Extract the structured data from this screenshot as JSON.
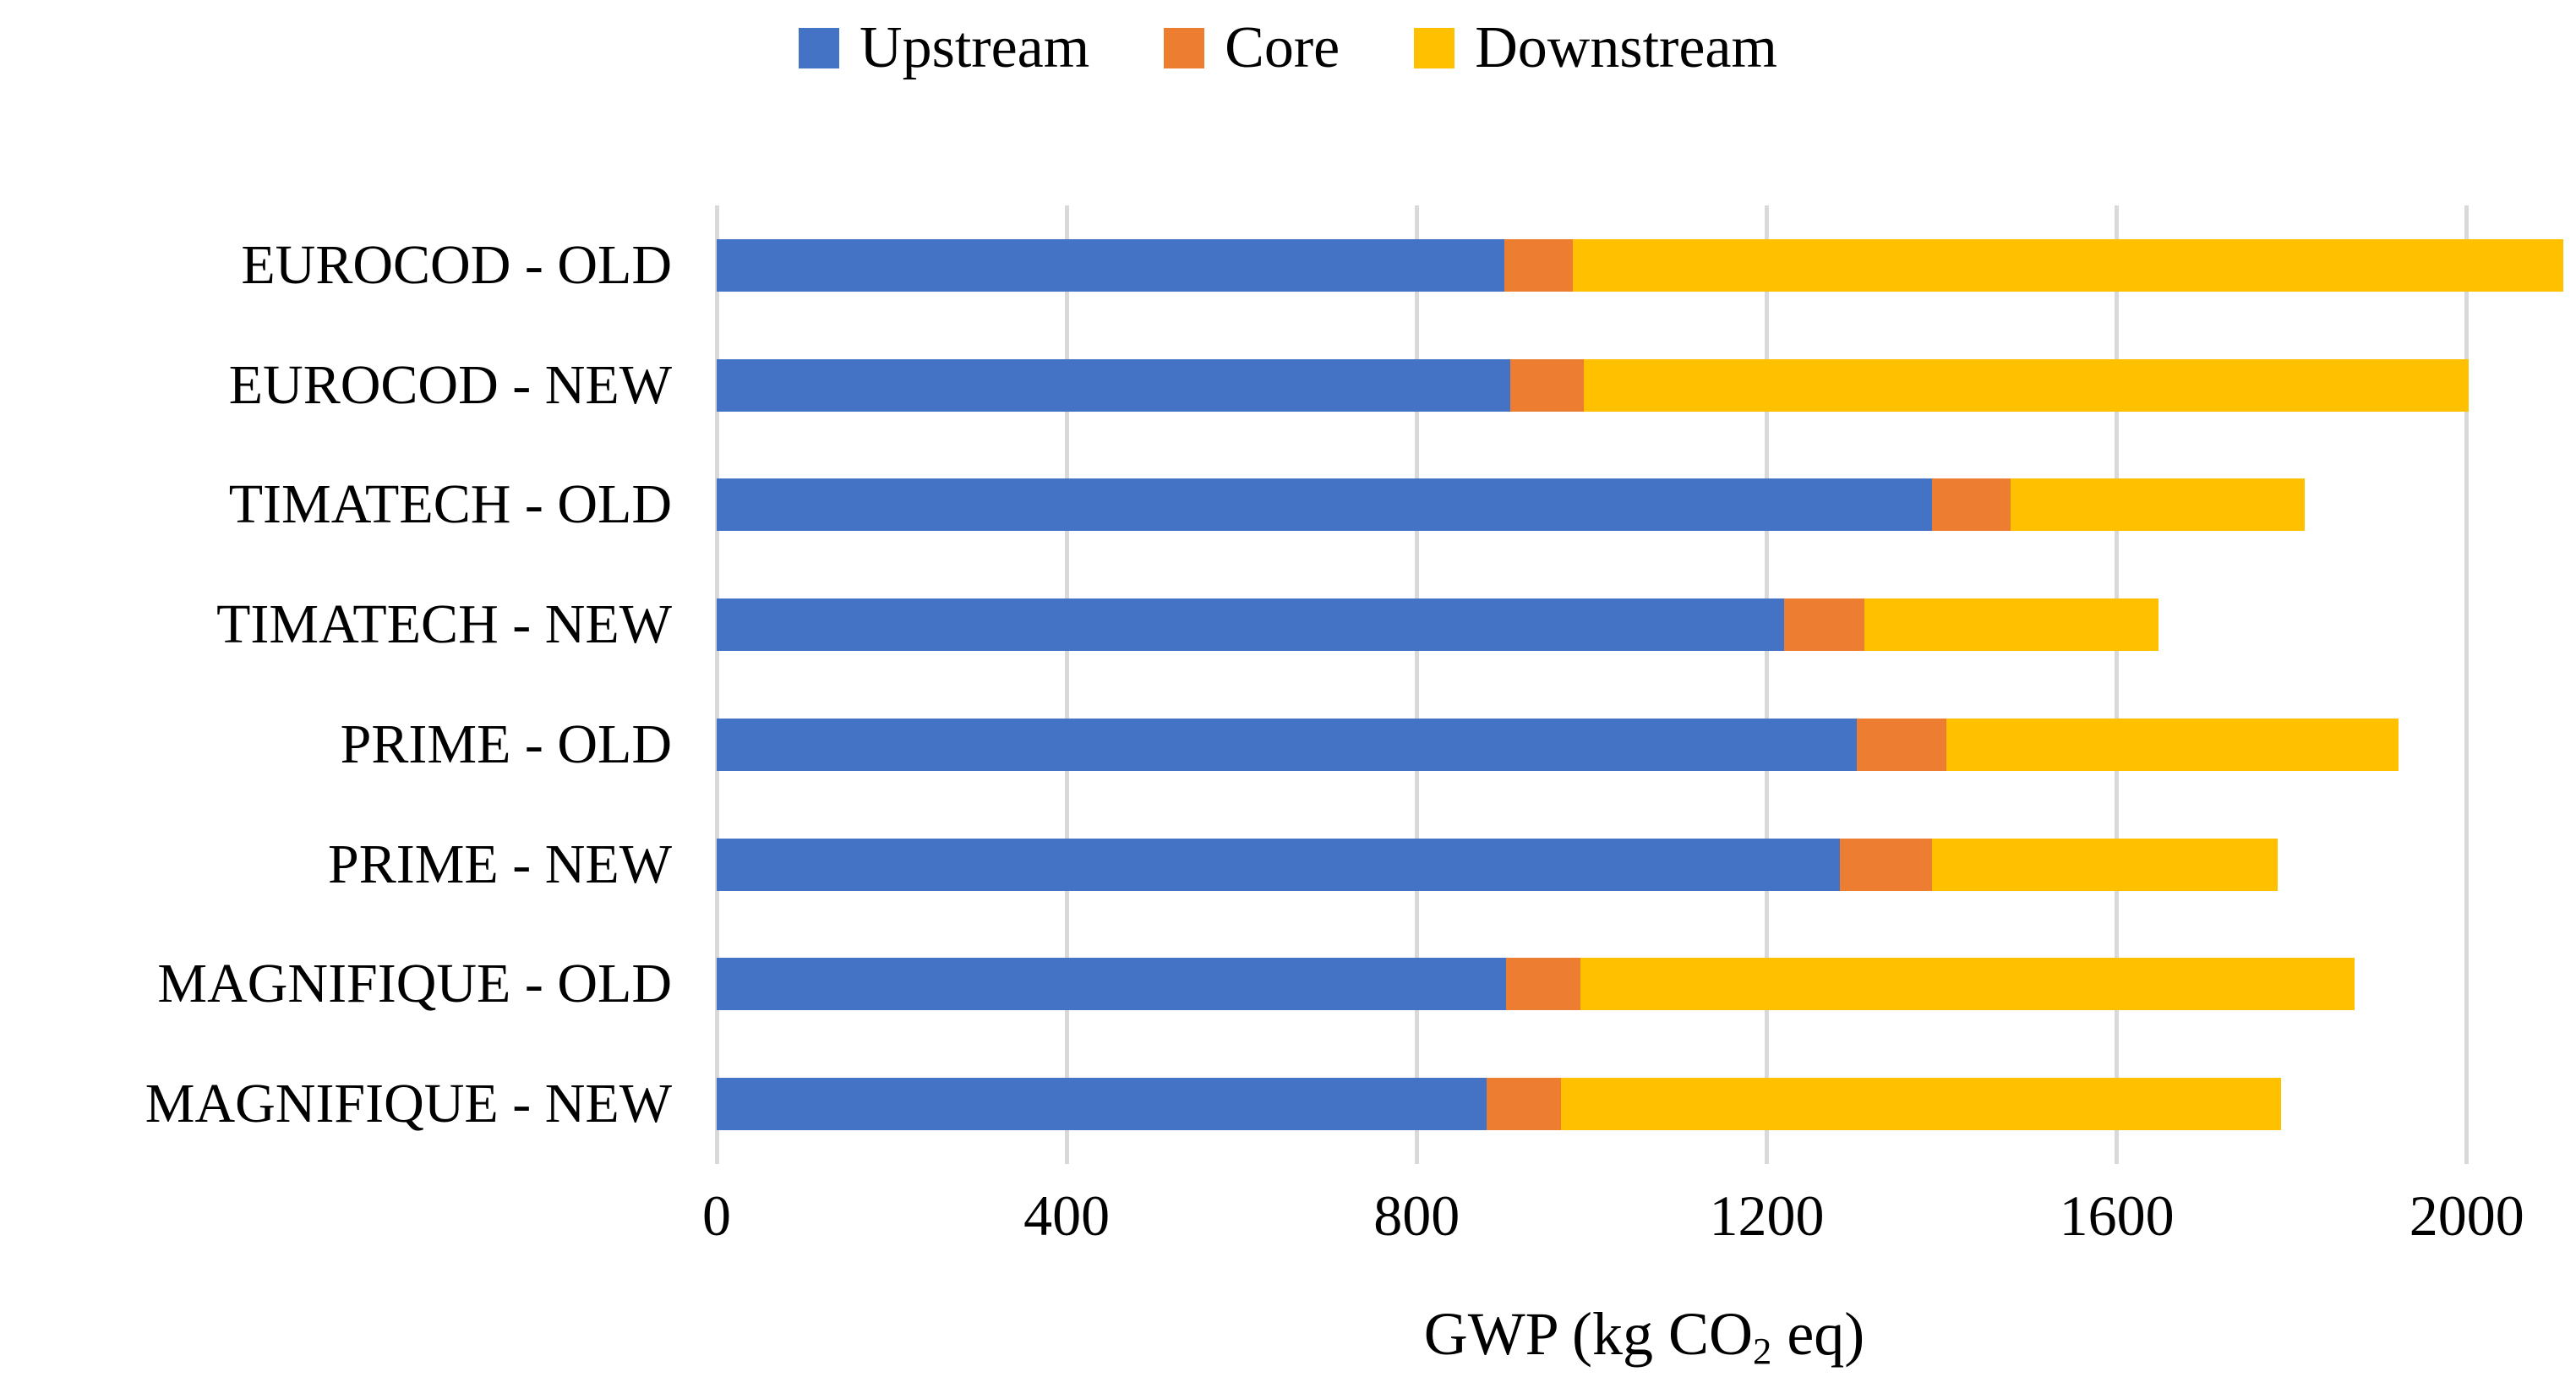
{
  "legend": {
    "items": [
      {
        "label": "Upstream",
        "color": "#4472C4"
      },
      {
        "label": "Core",
        "color": "#ED7D31"
      },
      {
        "label": "Downstream",
        "color": "#FFC000"
      }
    ]
  },
  "axis_title_parts": {
    "prefix": "GWP (kg CO",
    "sub": "2",
    "suffix": " eq)"
  },
  "colors": {
    "upstream": "#4472C4",
    "core": "#ED7D31",
    "downstream": "#FFC000",
    "gridline": "#D9D9D9",
    "text": "#000000",
    "background": "#FFFFFF"
  },
  "chart_data": {
    "type": "bar",
    "orientation": "horizontal-stacked",
    "title": "",
    "xlabel": "GWP (kg CO2 eq)",
    "ylabel": "",
    "categories": [
      "EUROCOD - OLD",
      "EUROCOD - NEW",
      "TIMATECH - OLD",
      "TIMATECH - NEW",
      "PRIME - OLD",
      "PRIME - NEW",
      "MAGNIFIQUE - OLD",
      "MAGNIFIQUE - NEW"
    ],
    "series": [
      {
        "name": "Upstream",
        "color": "#4472C4",
        "values": [
          900,
          907,
          1389,
          1220,
          1303,
          1284,
          902,
          880
        ]
      },
      {
        "name": "Core",
        "color": "#ED7D31",
        "values": [
          78,
          84,
          90,
          92,
          102,
          105,
          85,
          85
        ]
      },
      {
        "name": "Downstream",
        "color": "#FFC000",
        "values": [
          1132,
          1011,
          336,
          336,
          517,
          395,
          885,
          823
        ]
      }
    ],
    "totals": [
      2110,
      2002,
      1815,
      1648,
      1922,
      1784,
      1872,
      1788
    ],
    "xticks": [
      0,
      400,
      800,
      1200,
      1600,
      2000
    ],
    "xlim": [
      0,
      2120
    ],
    "grid": true,
    "legend_position": "top"
  }
}
